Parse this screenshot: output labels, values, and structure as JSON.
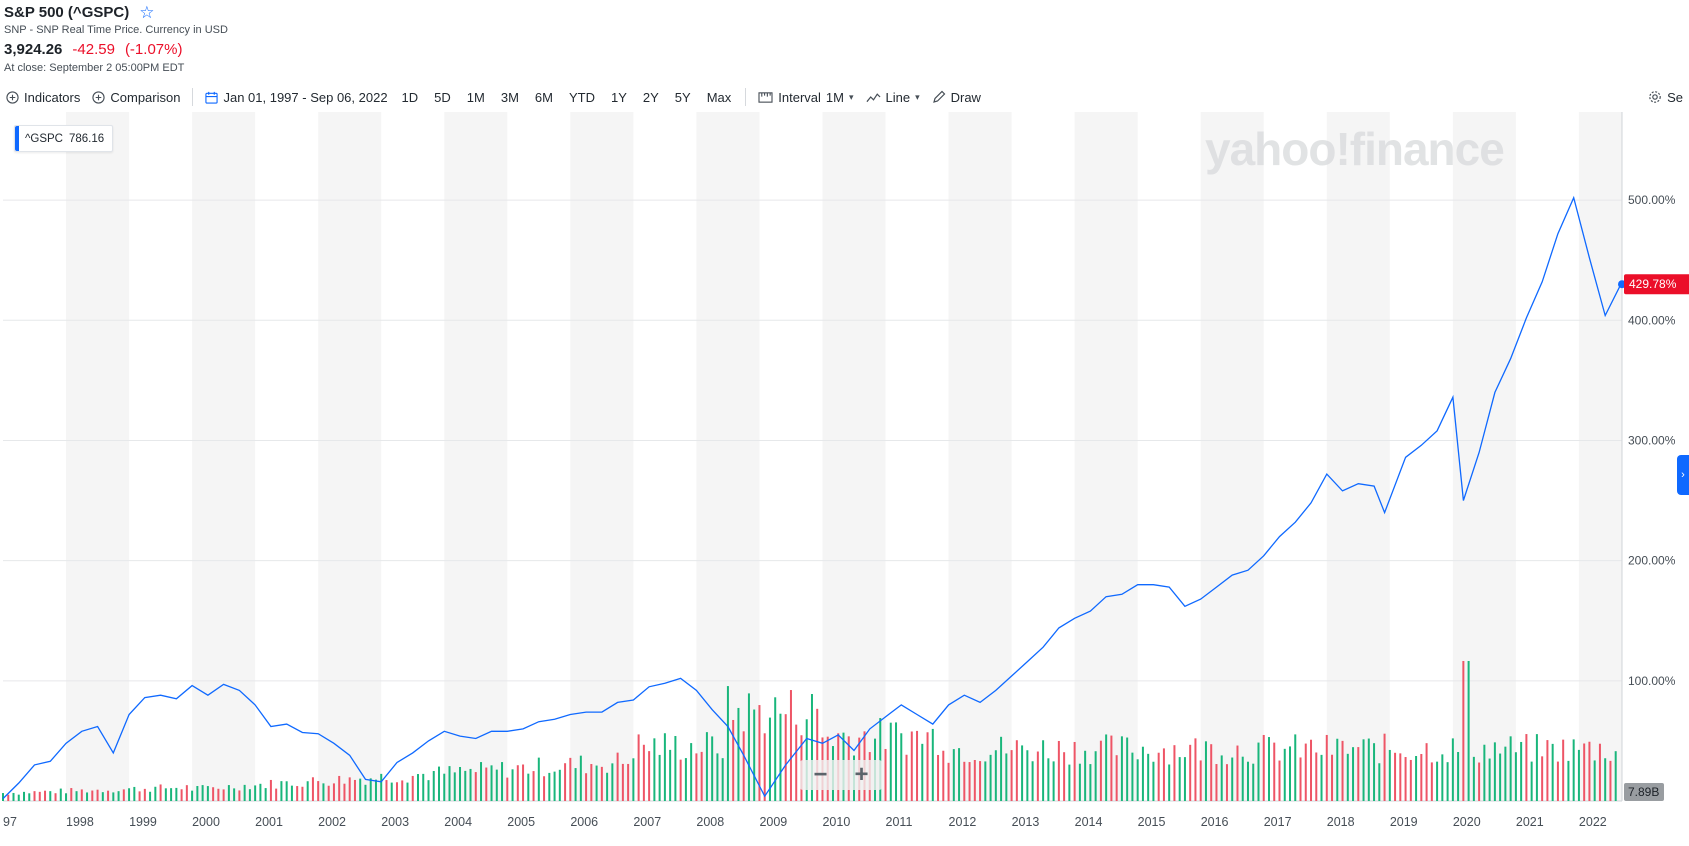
{
  "header": {
    "title": "S&P 500 (^GSPC)",
    "subtitle": "SNP - SNP Real Time Price. Currency in USD",
    "price": "3,924.26",
    "change": "-42.59",
    "change_pct": "(-1.07%)",
    "close_time": "At close: September 2 05:00PM EDT"
  },
  "toolbar": {
    "indicators": "Indicators",
    "comparison": "Comparison",
    "date_range": "Jan 01, 1997 - Sep 06, 2022",
    "ranges": [
      "1D",
      "5D",
      "1M",
      "3M",
      "6M",
      "YTD",
      "1Y",
      "2Y",
      "5Y",
      "Max"
    ],
    "interval_label": "Interval",
    "interval_value": "1M",
    "chart_type": "Line",
    "draw": "Draw",
    "settings": "Se"
  },
  "legend": {
    "symbol": "^GSPC",
    "value": "786.16"
  },
  "watermark": "yahoo!finance",
  "zoom": {
    "minus": "−",
    "plus": "+"
  },
  "colors": {
    "line": "#0f69ff",
    "volume_up": "#19b67b",
    "volume_down": "#ee5566",
    "last_badge": "#eb0f29",
    "volume_badge": "#999da1"
  },
  "chart_data": {
    "type": "line",
    "title": "",
    "x": [
      "1997-01",
      "1997-04",
      "1997-07",
      "1997-10",
      "1998-01",
      "1998-04",
      "1998-07",
      "1998-10",
      "1999-01",
      "1999-04",
      "1999-07",
      "1999-10",
      "2000-01",
      "2000-04",
      "2000-07",
      "2000-10",
      "2001-01",
      "2001-04",
      "2001-07",
      "2001-10",
      "2002-01",
      "2002-04",
      "2002-07",
      "2002-10",
      "2003-01",
      "2003-04",
      "2003-07",
      "2003-10",
      "2004-01",
      "2004-04",
      "2004-07",
      "2004-10",
      "2005-01",
      "2005-04",
      "2005-07",
      "2005-10",
      "2006-01",
      "2006-04",
      "2006-07",
      "2006-10",
      "2007-01",
      "2007-04",
      "2007-07",
      "2007-10",
      "2008-01",
      "2008-04",
      "2008-07",
      "2008-10",
      "2009-02",
      "2009-06",
      "2009-10",
      "2010-01",
      "2010-04",
      "2010-07",
      "2010-10",
      "2011-01",
      "2011-04",
      "2011-07",
      "2011-10",
      "2012-01",
      "2012-04",
      "2012-07",
      "2012-10",
      "2013-01",
      "2013-04",
      "2013-07",
      "2013-10",
      "2014-01",
      "2014-04",
      "2014-07",
      "2014-10",
      "2015-01",
      "2015-04",
      "2015-07",
      "2015-10",
      "2016-01",
      "2016-04",
      "2016-07",
      "2016-10",
      "2017-01",
      "2017-04",
      "2017-07",
      "2017-10",
      "2018-01",
      "2018-04",
      "2018-07",
      "2018-10",
      "2018-12",
      "2019-04",
      "2019-07",
      "2019-10",
      "2020-01",
      "2020-03",
      "2020-06",
      "2020-09",
      "2020-12",
      "2021-03",
      "2021-06",
      "2021-09",
      "2021-12",
      "2022-03",
      "2022-06",
      "2022-09"
    ],
    "series": [
      {
        "values": [
          2,
          15,
          30,
          33,
          48,
          58,
          62,
          40,
          72,
          86,
          88,
          85,
          96,
          88,
          97,
          92,
          80,
          62,
          64,
          57,
          56,
          48,
          38,
          18,
          16,
          32,
          40,
          50,
          58,
          54,
          52,
          58,
          58,
          60,
          66,
          68,
          72,
          74,
          74,
          82,
          84,
          95,
          98,
          102,
          92,
          76,
          62,
          38,
          4,
          30,
          52,
          48,
          55,
          42,
          60,
          70,
          80,
          72,
          64,
          80,
          88,
          82,
          92,
          104,
          116,
          128,
          144,
          152,
          158,
          170,
          172,
          180,
          180,
          178,
          162,
          168,
          178,
          188,
          192,
          204,
          220,
          232,
          248,
          272,
          258,
          264,
          262,
          240,
          286,
          296,
          308,
          336,
          250,
          290,
          340,
          368,
          402,
          432,
          472,
          502,
          452,
          404,
          430
        ]
      }
    ],
    "volume": {
      "unit": "B",
      "last_value": "7.89B",
      "note": "monthly volume bars, green = up month, red = down month"
    },
    "xaxis_ticks": [
      "97",
      "1998",
      "1999",
      "2000",
      "2001",
      "2002",
      "2003",
      "2004",
      "2005",
      "2006",
      "2007",
      "2008",
      "2009",
      "2010",
      "2011",
      "2012",
      "2013",
      "2014",
      "2015",
      "2016",
      "2017",
      "2018",
      "2019",
      "2020",
      "2021",
      "2022"
    ],
    "yaxis_ticks": [
      "100.00%",
      "200.00%",
      "300.00%",
      "400.00%",
      "500.00%"
    ],
    "ylim": [
      0,
      540
    ],
    "last_value_label": "429.78%",
    "grid": true,
    "legend": "top-left"
  }
}
